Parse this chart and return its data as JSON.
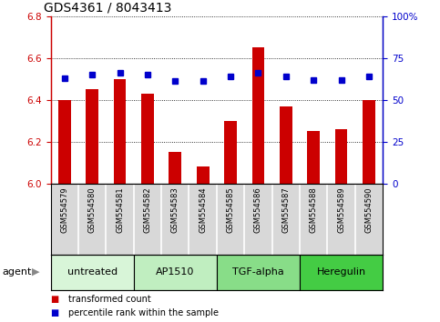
{
  "title": "GDS4361 / 8043413",
  "samples": [
    "GSM554579",
    "GSM554580",
    "GSM554581",
    "GSM554582",
    "GSM554583",
    "GSM554584",
    "GSM554585",
    "GSM554586",
    "GSM554587",
    "GSM554588",
    "GSM554589",
    "GSM554590"
  ],
  "bar_values": [
    6.4,
    6.45,
    6.5,
    6.43,
    6.15,
    6.08,
    6.3,
    6.65,
    6.37,
    6.25,
    6.26,
    6.4
  ],
  "dot_values": [
    63,
    65,
    66,
    65,
    61,
    61,
    64,
    66,
    64,
    62,
    62,
    64
  ],
  "bar_color": "#cc0000",
  "dot_color": "#0000cc",
  "ylim": [
    6.0,
    6.8
  ],
  "y2lim": [
    0,
    100
  ],
  "yticks": [
    6.0,
    6.2,
    6.4,
    6.6,
    6.8
  ],
  "y2ticks": [
    0,
    25,
    50,
    75,
    100
  ],
  "y2ticklabels": [
    "0",
    "25",
    "50",
    "75",
    "100%"
  ],
  "groups": [
    {
      "label": "untreated",
      "start": 0,
      "end": 3,
      "color": "#d8f5d8"
    },
    {
      "label": "AP1510",
      "start": 3,
      "end": 6,
      "color": "#c0eec0"
    },
    {
      "label": "TGF-alpha",
      "start": 6,
      "end": 9,
      "color": "#88dd88"
    },
    {
      "label": "Heregulin",
      "start": 9,
      "end": 12,
      "color": "#44cc44"
    }
  ],
  "agent_label": "agent",
  "legend_bar_label": "transformed count",
  "legend_dot_label": "percentile rank within the sample",
  "title_fontsize": 10,
  "tick_fontsize": 7.5,
  "sample_fontsize": 6,
  "group_fontsize": 8
}
